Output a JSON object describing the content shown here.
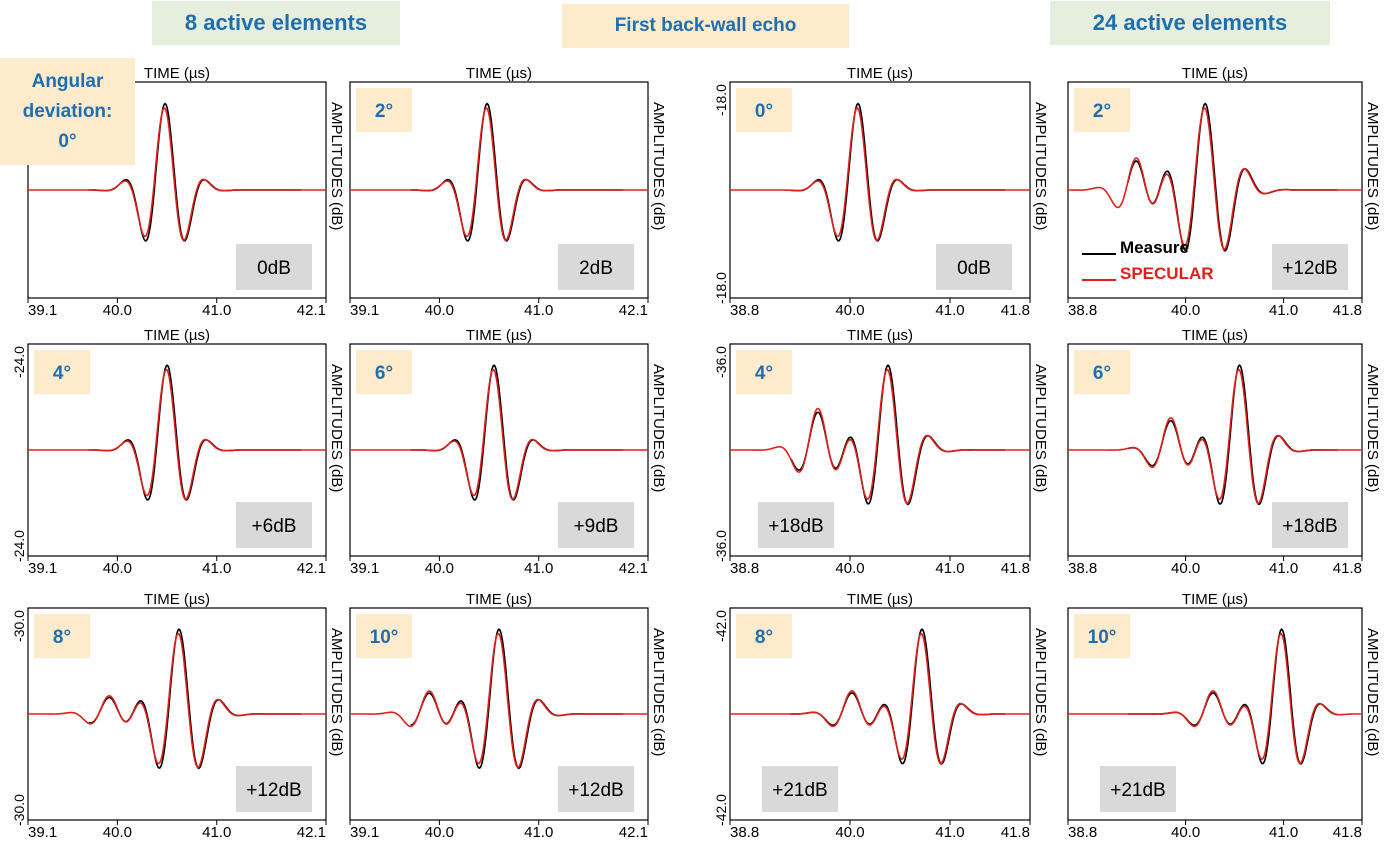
{
  "headers": {
    "left": "8 active elements",
    "center": "First back-wall echo",
    "right": "24 active elements",
    "angular": "Angular deviation: 0°"
  },
  "legend": {
    "measure": "Measure",
    "specular": "SPECULAR"
  },
  "axis_labels": {
    "top": "TIME (µs)",
    "right": "AMPLITUDES (dB)"
  },
  "colors": {
    "measure": "#000000",
    "specular": "#e0201b",
    "angle_text": "#1f6fb0",
    "angle_bg": "#fdebcc",
    "gain_bg": "#d9d9d9"
  },
  "chart_data": [
    {
      "type": "line",
      "group": "8 active elements",
      "angle": "",
      "gain": "0dB",
      "xlim": [
        39.1,
        42.1
      ],
      "xticks": [
        "39.1",
        "40.0",
        "41.0",
        "42.1"
      ],
      "yticks": [],
      "peak_time": 40.48,
      "carrier": 2.3,
      "width": 0.2,
      "sidelobe": 0.08,
      "specular_scale": 1.0
    },
    {
      "type": "line",
      "group": "8 active elements",
      "angle": "2°",
      "gain": "2dB",
      "xlim": [
        39.1,
        42.1
      ],
      "xticks": [
        "39.1",
        "40.0",
        "41.0",
        "42.1"
      ],
      "yticks": [],
      "peak_time": 40.48,
      "carrier": 2.3,
      "width": 0.2,
      "sidelobe": 0.1,
      "specular_scale": 1.0
    },
    {
      "type": "line",
      "group": "8 active elements",
      "angle": "4°",
      "gain": "+6dB",
      "xlim": [
        39.1,
        42.1
      ],
      "xticks": [
        "39.1",
        "40.0",
        "41.0",
        "42.1"
      ],
      "yticks": [
        "-24.0",
        "-24.0"
      ],
      "peak_time": 40.5,
      "carrier": 2.3,
      "width": 0.2,
      "sidelobe": 0.12,
      "specular_scale": 1.0
    },
    {
      "type": "line",
      "group": "8 active elements",
      "angle": "6°",
      "gain": "+9dB",
      "xlim": [
        39.1,
        42.1
      ],
      "xticks": [
        "39.1",
        "40.0",
        "41.0",
        "42.1"
      ],
      "yticks": [],
      "peak_time": 40.55,
      "carrier": 2.3,
      "width": 0.2,
      "sidelobe": 0.15,
      "specular_scale": 1.0
    },
    {
      "type": "line",
      "group": "8 active elements",
      "angle": "8°",
      "gain": "+12dB",
      "xlim": [
        39.1,
        42.1
      ],
      "xticks": [
        "39.1",
        "40.0",
        "41.0",
        "42.1"
      ],
      "yticks": [
        "-30.0",
        "-30.0"
      ],
      "peak_time": 40.62,
      "carrier": 2.3,
      "width": 0.22,
      "sidelobe": 0.2,
      "specular_scale": 1.0
    },
    {
      "type": "line",
      "group": "8 active elements",
      "angle": "10°",
      "gain": "+12dB",
      "xlim": [
        39.1,
        42.1
      ],
      "xticks": [
        "39.1",
        "40.0",
        "41.0",
        "42.1"
      ],
      "yticks": [],
      "peak_time": 40.6,
      "carrier": 2.3,
      "width": 0.22,
      "sidelobe": 0.25,
      "specular_scale": 1.0
    },
    {
      "type": "line",
      "group": "24 active elements",
      "angle": "0°",
      "gain": "0dB",
      "xlim": [
        38.8,
        41.8
      ],
      "xticks": [
        "38.8",
        "40.0",
        "41.0",
        "41.8"
      ],
      "yticks": [
        "-18.0",
        "-18.0"
      ],
      "peak_time": 40.08,
      "carrier": 2.3,
      "width": 0.2,
      "sidelobe": 0.1,
      "specular_scale": 1.0
    },
    {
      "type": "line",
      "group": "24 active elements",
      "angle": "2°",
      "gain": "+12dB",
      "xlim": [
        38.8,
        41.8
      ],
      "xticks": [
        "38.8",
        "40.0",
        "41.0",
        "41.8"
      ],
      "yticks": [],
      "peak_time": 40.2,
      "carrier": 2.3,
      "width": 0.25,
      "sidelobe": 0.35,
      "specular_scale": 1.0
    },
    {
      "type": "line",
      "group": "24 active elements",
      "angle": "4°",
      "gain": "+18dB",
      "xlim": [
        38.8,
        41.8
      ],
      "xticks": [
        "38.8",
        "40.0",
        "41.0",
        "41.8"
      ],
      "yticks": [
        "-36.0",
        "-36.0"
      ],
      "peak_time": 40.38,
      "carrier": 2.3,
      "width": 0.22,
      "sidelobe": 0.45,
      "specular_scale": 1.0
    },
    {
      "type": "line",
      "group": "24 active elements",
      "angle": "6°",
      "gain": "+18dB",
      "xlim": [
        38.8,
        41.8
      ],
      "xticks": [
        "38.8",
        "40.0",
        "41.0",
        "41.8"
      ],
      "yticks": [],
      "peak_time": 40.55,
      "carrier": 2.3,
      "width": 0.22,
      "sidelobe": 0.35,
      "specular_scale": 1.0
    },
    {
      "type": "line",
      "group": "24 active elements",
      "angle": "8°",
      "gain": "+21dB",
      "xlim": [
        38.8,
        41.8
      ],
      "xticks": [
        "38.8",
        "40.0",
        "41.0",
        "41.8"
      ],
      "yticks": [
        "-42.0",
        "-42.0"
      ],
      "peak_time": 40.72,
      "carrier": 2.3,
      "width": 0.2,
      "sidelobe": 0.25,
      "specular_scale": 1.0
    },
    {
      "type": "line",
      "group": "24 active elements",
      "angle": "10°",
      "gain": "+21dB",
      "xlim": [
        38.8,
        41.8
      ],
      "xticks": [
        "38.8",
        "40.0",
        "41.0",
        "41.8"
      ],
      "yticks": [],
      "peak_time": 40.98,
      "carrier": 2.3,
      "width": 0.2,
      "sidelobe": 0.25,
      "specular_scale": 1.0
    }
  ]
}
